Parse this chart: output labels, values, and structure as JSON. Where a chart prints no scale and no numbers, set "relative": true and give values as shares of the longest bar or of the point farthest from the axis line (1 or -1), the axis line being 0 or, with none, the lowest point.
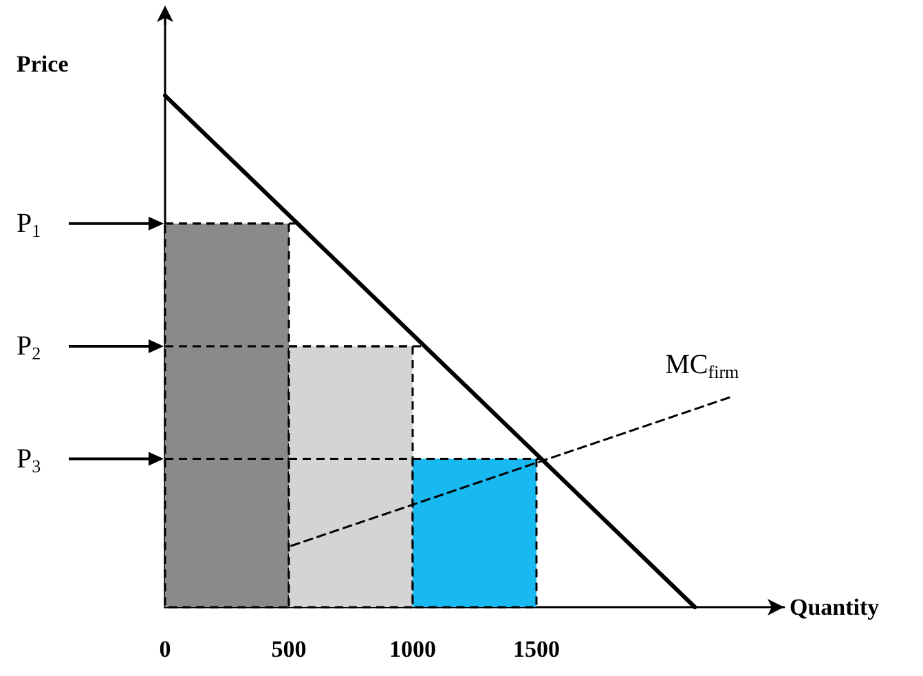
{
  "chart_data": {
    "type": "line",
    "relative": true,
    "xlabel": "Quantity",
    "ylabel": "Price",
    "xlim": [
      0,
      2500
    ],
    "xticks": [
      0,
      500,
      1000,
      1500
    ],
    "grid": false,
    "series": [
      {
        "type": "histogram",
        "bins": [
          0,
          500,
          1000,
          1500
        ],
        "values": [
          0.75,
          0.51,
          0.29
        ],
        "colors": [
          "#8a8a8a",
          "#d4d4d4",
          "#18b8f0"
        ],
        "line_style": "dashed"
      },
      {
        "x": [
          0,
          2140
        ],
        "values": [
          1,
          0
        ],
        "color": "#000000",
        "line_style": "solid",
        "marker": "none"
      },
      {
        "type": "line",
        "x": [
          510,
          2280
        ],
        "values": [
          0.12,
          0.41
        ],
        "color": "#000000",
        "line_style": "dashed",
        "marker": "none"
      }
    ],
    "ref_lines": [
      {
        "axis": "y",
        "value": 0.75,
        "label": "P$_{1}$",
        "line_style": "dashed"
      },
      {
        "axis": "y",
        "value": 0.51,
        "label": "P$_{2}$",
        "line_style": "dashed"
      },
      {
        "axis": "y",
        "value": 0.29,
        "label": "P$_{3}$",
        "line_style": "dashed"
      }
    ],
    "annotations": [
      "MC$_{firm}$"
    ]
  }
}
